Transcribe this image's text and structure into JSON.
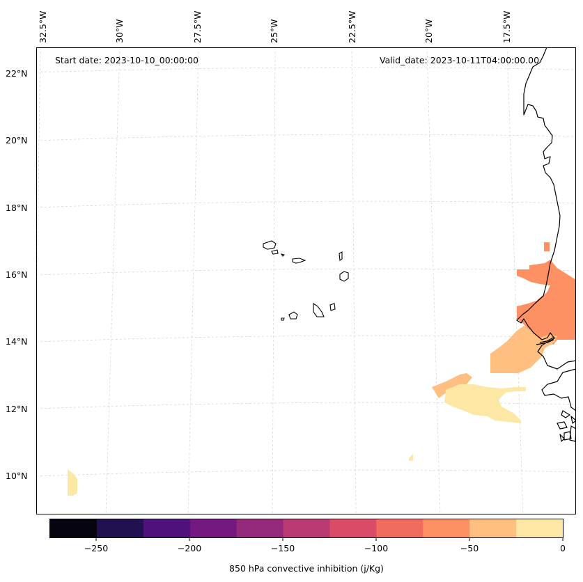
{
  "map": {
    "start_date": "Start date: 2023-10-10_00:00:00",
    "valid_date": "Valid_date: 2023-10-11T04:00:00.00",
    "lat_labels": [
      "22°N",
      "20°N",
      "18°N",
      "16°N",
      "14°N",
      "12°N",
      "10°N"
    ],
    "lon_labels": [
      "32.5°W",
      "30°W",
      "27.5°W",
      "25°W",
      "22.5°W",
      "20°W",
      "17.5°W"
    ],
    "gridlines": true,
    "coastline_color": "#000000",
    "field_colors": {
      "minus_25_to_0": "#fde7a4",
      "minus_50_to_minus_25": "#febf80",
      "minus_75_to_minus_50": "#fd9163"
    }
  },
  "colorbar": {
    "label": "850 hPa convective inhibition (j/Kg)",
    "ticks": [
      "−250",
      "−200",
      "−150",
      "−100",
      "−50",
      "0"
    ],
    "colors": [
      "#05040f",
      "#221150",
      "#4f117a",
      "#73197f",
      "#952a7c",
      "#ba3a73",
      "#da4b68",
      "#f16c5e",
      "#fd9163",
      "#febf80",
      "#fde7a4"
    ]
  }
}
